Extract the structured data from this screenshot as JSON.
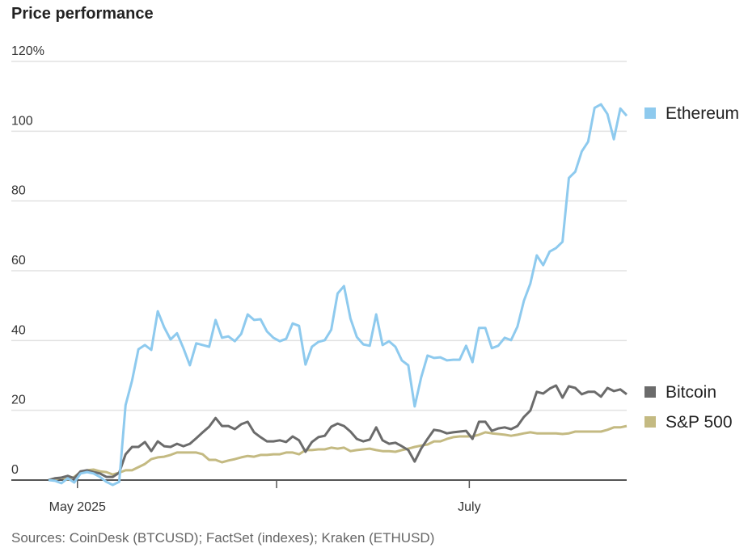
{
  "chart_data": {
    "type": "line",
    "title": "Price performance",
    "source": "Sources: CoinDesk (BTCUSD); FactSet (indexes); Kraken (ETHUSD)",
    "ylabel": "",
    "xlabel": "",
    "ylim": [
      0,
      120
    ],
    "y_ticks": [
      {
        "value": 0,
        "label": "0"
      },
      {
        "value": 20,
        "label": "20"
      },
      {
        "value": 40,
        "label": "40"
      },
      {
        "value": 60,
        "label": "60"
      },
      {
        "value": 80,
        "label": "80"
      },
      {
        "value": 100,
        "label": "100"
      },
      {
        "value": 120,
        "label": "120%"
      }
    ],
    "x_range_days": [
      0,
      90
    ],
    "x_ticks": [
      {
        "day": 4.5,
        "label": "May 2025"
      },
      {
        "day": 35.5,
        "label": ""
      },
      {
        "day": 65.5,
        "label": "July"
      }
    ],
    "grid": true,
    "legend_placement": "right, at line ends",
    "series": [
      {
        "name": "Ethereum",
        "color": "#8ECAEE",
        "values": [
          0,
          -0.2,
          -0.9,
          0.5,
          -0.7,
          1.9,
          2.3,
          1.9,
          0.9,
          -0.5,
          -1.4,
          -0.5,
          21.5,
          28.5,
          37.5,
          38.7,
          37.3,
          48.4,
          43.8,
          40.3,
          42.1,
          37.8,
          32.9,
          39.2,
          38.7,
          38.2,
          45.9,
          40.8,
          41.2,
          39.8,
          41.9,
          47.5,
          45.9,
          46.1,
          42.6,
          40.8,
          39.8,
          40.5,
          44.9,
          44.2,
          33.1,
          38.2,
          39.6,
          40.1,
          43.1,
          53.5,
          55.6,
          46.3,
          41.0,
          38.9,
          38.5,
          47.5,
          38.7,
          39.8,
          38.2,
          34.3,
          32.9,
          21.1,
          29.4,
          35.7,
          35.0,
          35.2,
          34.3,
          34.5,
          34.5,
          38.5,
          33.8,
          43.6,
          43.6,
          37.8,
          38.5,
          40.8,
          40.1,
          44.0,
          51.4,
          56.3,
          64.4,
          61.6,
          65.5,
          66.5,
          68.3,
          86.6,
          88.4,
          94.2,
          97.0,
          106.7,
          107.7,
          104.9,
          97.7,
          106.5,
          104.4
        ]
      },
      {
        "name": "Bitcoin",
        "color": "#6B6B6B",
        "values": [
          0,
          0.5,
          0.7,
          1.2,
          0.5,
          2.5,
          2.8,
          2.3,
          1.9,
          0.9,
          0.9,
          2.1,
          7.4,
          9.5,
          9.5,
          10.9,
          8.3,
          11.1,
          9.7,
          9.5,
          10.4,
          9.7,
          10.4,
          12.0,
          13.7,
          15.3,
          17.8,
          15.5,
          15.5,
          14.6,
          16.0,
          16.7,
          13.7,
          12.3,
          11.1,
          11.1,
          11.4,
          10.9,
          12.5,
          11.4,
          8.1,
          10.9,
          12.3,
          12.7,
          15.3,
          16.2,
          15.5,
          13.9,
          11.8,
          11.1,
          11.6,
          15.1,
          11.4,
          10.4,
          10.7,
          9.7,
          8.6,
          5.3,
          9.0,
          11.8,
          14.4,
          14.1,
          13.4,
          13.7,
          13.9,
          14.1,
          11.8,
          16.7,
          16.7,
          14.1,
          14.8,
          15.1,
          14.6,
          15.5,
          18.1,
          19.9,
          25.3,
          24.8,
          26.2,
          27.1,
          23.6,
          26.9,
          26.4,
          24.6,
          25.3,
          25.3,
          23.9,
          26.4,
          25.5,
          26.0,
          24.6
        ]
      },
      {
        "name": "S&P 500",
        "color": "#C4BA82",
        "values": [
          0,
          0.2,
          0.7,
          0.2,
          0.9,
          2.3,
          2.8,
          3.0,
          2.5,
          2.3,
          1.6,
          2.1,
          2.8,
          2.8,
          3.7,
          4.6,
          6.0,
          6.5,
          6.7,
          7.2,
          7.9,
          7.9,
          7.9,
          7.9,
          7.4,
          5.8,
          5.8,
          5.1,
          5.6,
          6.0,
          6.5,
          6.9,
          6.7,
          7.2,
          7.2,
          7.4,
          7.4,
          7.9,
          7.9,
          7.4,
          8.6,
          8.6,
          8.8,
          8.8,
          9.3,
          9.0,
          9.3,
          8.3,
          8.6,
          8.8,
          9.0,
          8.6,
          8.3,
          8.3,
          8.1,
          8.6,
          9.0,
          9.5,
          9.9,
          10.2,
          11.1,
          11.1,
          11.8,
          12.3,
          12.5,
          12.5,
          12.5,
          13.0,
          13.7,
          13.4,
          13.2,
          13.0,
          12.7,
          13.0,
          13.4,
          13.7,
          13.4,
          13.4,
          13.4,
          13.4,
          13.2,
          13.4,
          13.9,
          13.9,
          13.9,
          13.9,
          13.9,
          14.4,
          15.1,
          15.1,
          15.5
        ]
      }
    ]
  }
}
